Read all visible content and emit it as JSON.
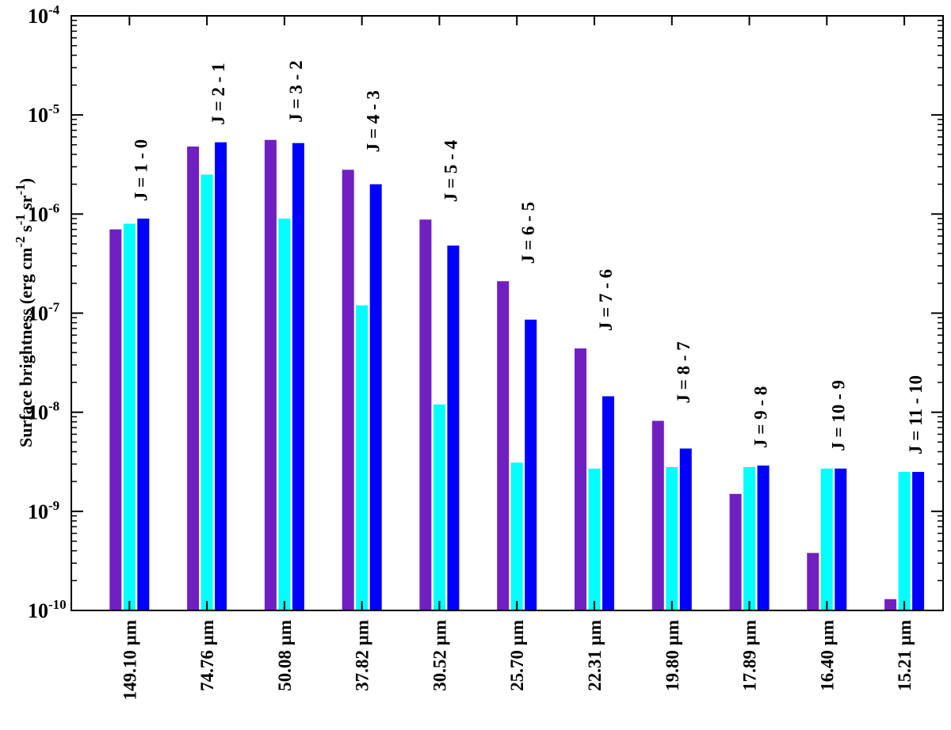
{
  "chart_data": {
    "type": "bar",
    "yscale": "log",
    "ylim": [
      1e-10,
      0.0001
    ],
    "ylabel": {
      "text": "Surface brightness (erg cm",
      "sup1": "-2",
      "mid1": " s",
      "sup2": "-1",
      "mid2": " sr",
      "sup3": "-1",
      "end": ")"
    },
    "yticks": [
      {
        "base": "10",
        "exp": "-10"
      },
      {
        "base": "10",
        "exp": "-9"
      },
      {
        "base": "10",
        "exp": "-8"
      },
      {
        "base": "10",
        "exp": "-7"
      },
      {
        "base": "10",
        "exp": "-6"
      },
      {
        "base": "10",
        "exp": "-5"
      },
      {
        "base": "10",
        "exp": "-4"
      }
    ],
    "categories": [
      "149.10 µm",
      "74.76 µm",
      "50.08 µm",
      "37.82 µm",
      "30.52 µm",
      "25.70 µm",
      "22.31 µm",
      "19.80 µm",
      "17.89 µm",
      "16.40 µm",
      "15.21 µm"
    ],
    "transitions": [
      "J = 1 - 0",
      "J = 2 - 1",
      "J = 3 - 2",
      "J = 4 - 3",
      "J = 5 - 4",
      "J = 6 - 5",
      "J = 7 - 6",
      "J = 8 - 7",
      "J = 9 - 8",
      "J = 10 - 9",
      "J = 11 - 10"
    ],
    "series": [
      {
        "color": "#7020c0",
        "values": [
          7e-07,
          4.8e-06,
          5.6e-06,
          2.8e-06,
          8.8e-07,
          2.1e-07,
          4.4e-08,
          8.2e-09,
          1.5e-09,
          3.8e-10,
          1.3e-10
        ]
      },
      {
        "color": "#00ffff",
        "values": [
          8e-07,
          2.5e-06,
          9e-07,
          1.2e-07,
          1.2e-08,
          3.1e-09,
          2.7e-09,
          2.8e-09,
          2.8e-09,
          2.7e-09,
          2.5e-09
        ]
      },
      {
        "color": "#0000ff",
        "values": [
          9e-07,
          5.3e-06,
          5.2e-06,
          2e-06,
          4.8e-07,
          8.6e-08,
          1.45e-08,
          4.3e-09,
          2.9e-09,
          2.7e-09,
          2.5e-09
        ]
      }
    ],
    "grid": false,
    "legend": "none"
  }
}
